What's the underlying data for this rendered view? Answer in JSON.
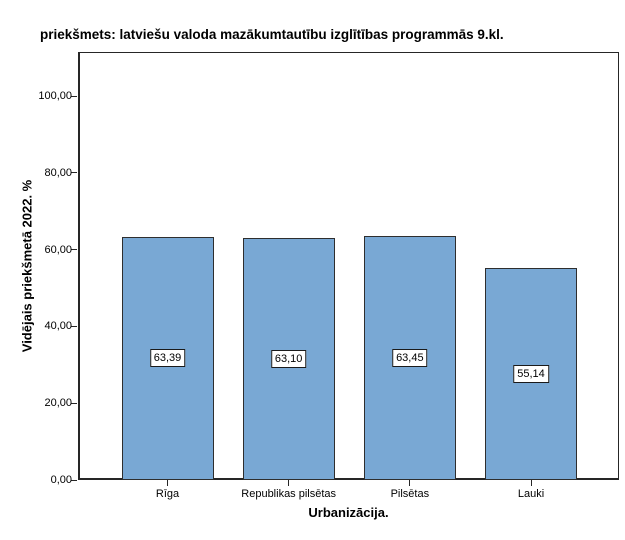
{
  "chart_data": {
    "type": "bar",
    "title": "priekšmets: latviešu valoda mazākumtautību izglītības programmās 9.kl.",
    "xlabel": "Urbanizācija.",
    "ylabel": "Vidējais priekšmetā 2022. %",
    "categories": [
      "Rīga",
      "Republikas pilsētas",
      "Pilsētas",
      "Lauki"
    ],
    "values": [
      63.39,
      63.1,
      63.45,
      55.14
    ],
    "value_labels": [
      "63,39",
      "63,10",
      "63,45",
      "55,14"
    ],
    "yticks": [
      0,
      20,
      40,
      60,
      80,
      100
    ],
    "ytick_labels": [
      "0,00",
      "20,00",
      "40,00",
      "60,00",
      "80,00",
      "100,00"
    ],
    "ylim": [
      0,
      111.5
    ],
    "grid": false,
    "legend_position": "none",
    "bar_color": "#79A8D4",
    "bar_border_color": "#2E2E2E",
    "axis_color": "#262626"
  }
}
